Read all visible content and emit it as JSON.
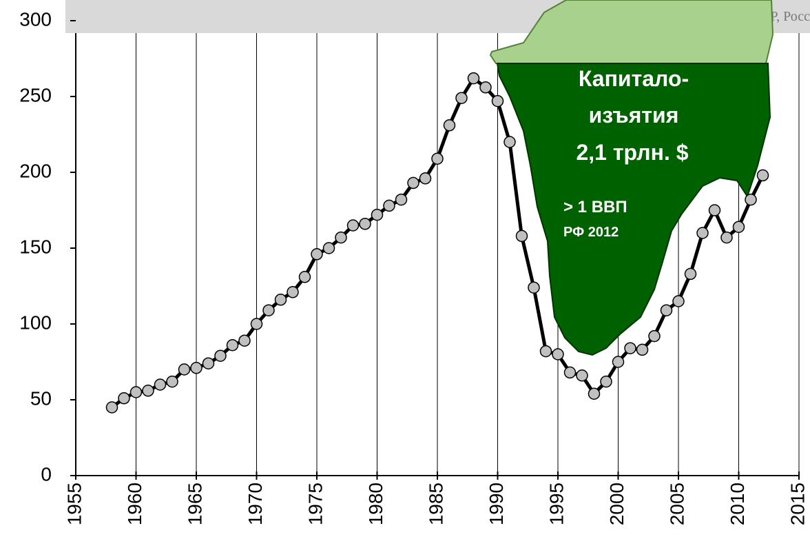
{
  "chart_data": {
    "type": "line",
    "source": "Источник данных: ЦСУ РСФСР, Росс",
    "annotations": [
      "Капитало-",
      "изъятия",
      "2,1 трлн. $",
      "> 1 ВВП",
      "РФ 2012"
    ],
    "x": [
      1958,
      1959,
      1960,
      1961,
      1962,
      1963,
      1964,
      1965,
      1966,
      1967,
      1968,
      1969,
      1970,
      1971,
      1972,
      1973,
      1974,
      1975,
      1976,
      1977,
      1978,
      1979,
      1980,
      1981,
      1982,
      1983,
      1984,
      1985,
      1986,
      1987,
      1988,
      1989,
      1990,
      1991,
      1992,
      1993,
      1994,
      1995,
      1996,
      1997,
      1998,
      1999,
      2000,
      2001,
      2002,
      2003,
      2004,
      2005,
      2006,
      2007,
      2008,
      2009,
      2010,
      2011,
      2012
    ],
    "series": [
      {
        "color": "#000000",
        "marker_color": "#c0c0c0",
        "values": [
          45,
          51,
          55,
          56,
          60,
          62,
          70,
          71,
          74,
          79,
          86,
          89,
          100,
          109,
          116,
          121,
          131,
          146,
          150,
          157,
          165,
          166,
          172,
          178,
          182,
          193,
          196,
          209,
          231,
          249,
          262,
          256,
          247,
          220,
          158,
          124,
          82,
          80,
          68,
          66,
          54,
          62,
          75,
          84,
          83,
          92,
          109,
          115,
          133,
          160,
          175,
          157,
          164,
          182,
          198
        ]
      }
    ],
    "xlim": [
      1955,
      2015
    ],
    "xticks": [
      1955,
      1960,
      1965,
      1970,
      1975,
      1980,
      1985,
      1990,
      1995,
      2000,
      2005,
      2010,
      2015
    ],
    "ylim": [
      0,
      300
    ],
    "yticks": [
      0,
      50,
      100,
      150,
      200,
      250,
      300
    ],
    "grid": "x"
  }
}
